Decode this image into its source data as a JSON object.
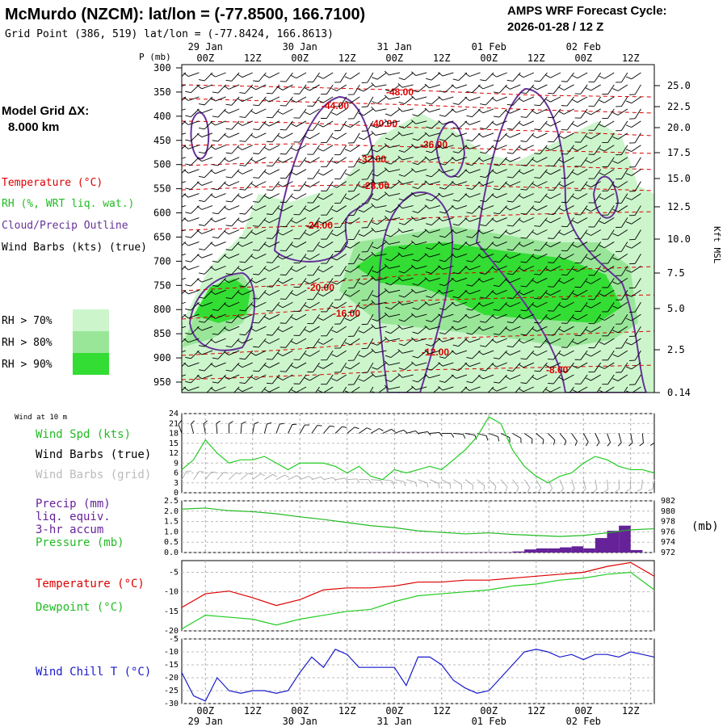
{
  "header": {
    "title": "McMurdo (NZCM):  lat/lon = (-77.8500, 166.7100)",
    "subtitle": "Grid Point (386, 519) lat/lon = (-77.8424, 166.8613)",
    "cycle_line1": "AMPS WRF Forecast Cycle:",
    "cycle_line2": "2026-01-28 / 12  Z"
  },
  "side": {
    "grid_label": "Model Grid ΔX:",
    "grid_value": "8.000 km",
    "temperature": "Temperature (°C)",
    "rh": "RH (%, WRT liq. wat.)",
    "cloud": "Cloud/Precip Outline",
    "wind_barbs": "Wind Barbs (kts) (true)",
    "rh70": "RH > 70%",
    "rh80": "RH > 80%",
    "rh90": "RH > 90%",
    "wind10m": "Wind at 10 m",
    "wind_spd": "Wind Spd (kts)",
    "wind_barbs_true": "Wind Barbs (true)",
    "wind_barbs_grid": "Wind Barbs (grid)",
    "precip": "Precip (mm)",
    "liq": "liq. equiv.",
    "accum": "3-hr accum",
    "pressure": "Pressure (mb)",
    "temp2": "Temperature (°C)",
    "dewpoint": "Dewpoint (°C)",
    "windchill": "Wind Chill T (°C)",
    "pres_unit": "(mb)",
    "p_axis": "P (mb)",
    "kft": "Kft MSL"
  },
  "colors": {
    "temperature": "#dd0000",
    "dewpoint": "#22cc22",
    "wind_speed": "#22cc22",
    "pressure": "#22bb22",
    "precip": "#662299",
    "cloud": "#663399",
    "windchill": "#1a1acc",
    "rh70": "#ccf5cc",
    "rh80": "#99e699",
    "rh90": "#33dd33"
  },
  "time_axis": {
    "ticks": [
      "00Z",
      "12Z",
      "00Z",
      "12Z",
      "00Z",
      "12Z",
      "00Z",
      "12Z",
      "00Z",
      "12Z"
    ],
    "dates": [
      "29 Jan",
      "30 Jan",
      "31 Jan",
      "01 Feb",
      "02 Feb"
    ]
  },
  "chart_data": [
    {
      "type": "heatmap",
      "name": "cross-section",
      "y_ticks_mb": [
        "300",
        "350",
        "400",
        "450",
        "500",
        "550",
        "600",
        "650",
        "700",
        "750",
        "800",
        "850",
        "900",
        "950"
      ],
      "height_ticks_kft": [
        "25.0",
        "22.5",
        "20.0",
        "17.5",
        "15.0",
        "12.5",
        "10.0",
        "7.5",
        "5.0",
        "2.5",
        "0.14"
      ],
      "temperature_labels": [
        "-48.00",
        "-44.00",
        "-40.00",
        "-36.00",
        "-32.00",
        "-28.00",
        "-24.00",
        "-20.00",
        "-16.00",
        "-12.00",
        "-8.00"
      ]
    },
    {
      "type": "line",
      "name": "wind speed 10 m",
      "ylim": [
        0,
        24
      ],
      "y_ticks": [
        "24",
        "21",
        "18",
        "15",
        "12",
        "9",
        "6",
        "3",
        "0"
      ],
      "x_hours": [
        0,
        3,
        6,
        9,
        12,
        15,
        18,
        21,
        24,
        27,
        30,
        33,
        36,
        39,
        42,
        45,
        48,
        51,
        54,
        57,
        60,
        63,
        66,
        69,
        72,
        75,
        78,
        81,
        84,
        87,
        90,
        93,
        96,
        99,
        102,
        105,
        108,
        111,
        114,
        117,
        120
      ],
      "values": [
        7,
        10,
        16,
        12,
        9,
        10,
        10,
        11,
        9,
        7,
        9,
        9,
        9,
        8,
        6,
        8,
        5,
        4,
        7,
        6,
        7,
        8,
        7,
        10,
        13,
        17,
        23,
        21,
        13,
        8,
        5,
        3,
        5,
        6,
        9,
        11,
        10,
        8,
        7,
        7,
        6
      ]
    },
    {
      "type": "bar",
      "name": "precip 3-hr accum",
      "ylim": [
        0,
        2.5
      ],
      "y_ticks": [
        "2.5",
        "2.0",
        "1.5",
        "1.0",
        "0.5",
        "0.0"
      ],
      "x_hours": [
        48,
        51,
        54,
        57,
        60,
        63,
        66,
        69,
        72,
        75,
        78,
        81,
        84,
        87,
        90,
        93,
        96,
        99,
        102,
        105,
        108,
        111,
        114,
        117
      ],
      "values": [
        0.01,
        0.01,
        0.01,
        0.01,
        0.01,
        0.01,
        0.01,
        0.01,
        0.01,
        0.01,
        0.01,
        0.01,
        0.01,
        0.05,
        0.15,
        0.2,
        0.2,
        0.25,
        0.3,
        0.2,
        0.7,
        1.05,
        1.3,
        0.12
      ]
    },
    {
      "type": "line",
      "name": "pressure",
      "ylim": [
        972,
        982
      ],
      "y_ticks": [
        "982",
        "980",
        "978",
        "976",
        "974",
        "972"
      ],
      "x_hours": [
        0,
        6,
        12,
        18,
        24,
        30,
        36,
        42,
        48,
        54,
        60,
        66,
        72,
        78,
        84,
        90,
        96,
        102,
        108,
        114,
        120
      ],
      "values": [
        980.4,
        980.6,
        980.1,
        979.9,
        979.5,
        978.9,
        978.4,
        977.8,
        977.2,
        976.8,
        976.2,
        975.9,
        975.6,
        975.8,
        975.5,
        975.3,
        975.1,
        975.3,
        975.8,
        976.4,
        976.6
      ]
    },
    {
      "type": "line",
      "name": "temperature and dewpoint",
      "ylim": [
        -20,
        -2
      ],
      "y_ticks": [
        "-5",
        "-10",
        "-15",
        "-20"
      ],
      "x_hours": [
        0,
        6,
        12,
        18,
        24,
        30,
        36,
        42,
        48,
        54,
        60,
        66,
        72,
        78,
        84,
        90,
        96,
        102,
        108,
        114,
        120
      ],
      "temperature": [
        -14,
        -10.5,
        -9.8,
        -11.5,
        -13.5,
        -12,
        -9.5,
        -9,
        -9,
        -8.5,
        -7.5,
        -7.5,
        -7,
        -7,
        -6.5,
        -6,
        -5.5,
        -5,
        -3.5,
        -2.5,
        -6
      ],
      "dewpoint": [
        -19.5,
        -16,
        -16.5,
        -17,
        -18.5,
        -17,
        -16,
        -15,
        -14.5,
        -12.5,
        -11,
        -10.5,
        -10,
        -9.5,
        -8.5,
        -8,
        -7,
        -6.5,
        -5.5,
        -5,
        -9.5
      ]
    },
    {
      "type": "line",
      "name": "wind chill",
      "ylim": [
        -30,
        -5
      ],
      "y_ticks": [
        "-5",
        "-10",
        "-15",
        "-20",
        "-25",
        "-30"
      ],
      "x_hours": [
        0,
        3,
        6,
        9,
        12,
        15,
        18,
        21,
        24,
        27,
        30,
        33,
        36,
        39,
        42,
        45,
        48,
        51,
        54,
        57,
        60,
        63,
        66,
        69,
        72,
        75,
        78,
        81,
        84,
        87,
        90,
        93,
        96,
        99,
        102,
        105,
        108,
        111,
        114,
        117,
        120
      ],
      "values": [
        -18,
        -27,
        -29,
        -20,
        -25,
        -26,
        -25,
        -25,
        -26,
        -25,
        -18,
        -12,
        -16,
        -9,
        -11,
        -16,
        -16,
        -16,
        -16,
        -23,
        -12,
        -12,
        -15,
        -21,
        -24,
        -26,
        -25,
        -20,
        -15,
        -10,
        -9,
        -10,
        -12,
        -11,
        -13,
        -11,
        -11,
        -12,
        -10,
        -11,
        -12
      ]
    }
  ]
}
